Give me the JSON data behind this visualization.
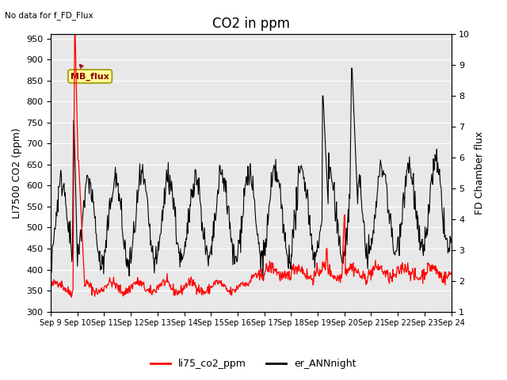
{
  "title": "CO2 in ppm",
  "ylabel_left": "LI7500 CO2 (ppm)",
  "ylabel_right": "FD Chamber flux",
  "top_left_text": "No data for f_FD_Flux",
  "annotation_text": "MB_flux",
  "ylim_left": [
    300,
    960
  ],
  "ylim_right": [
    1.0,
    10.0
  ],
  "yticks_left": [
    300,
    350,
    400,
    450,
    500,
    550,
    600,
    650,
    700,
    750,
    800,
    850,
    900,
    950
  ],
  "yticks_right": [
    1.0,
    2.0,
    3.0,
    4.0,
    5.0,
    6.0,
    7.0,
    8.0,
    9.0,
    10.0
  ],
  "xtick_labels": [
    "Sep 9",
    "Sep 10",
    "Sep 11",
    "Sep 12",
    "Sep 13",
    "Sep 14",
    "Sep 15",
    "Sep 16",
    "Sep 17",
    "Sep 18",
    "Sep 19",
    "Sep 20",
    "Sep 21",
    "Sep 22",
    "Sep 23",
    "Sep 24"
  ],
  "co2_color": "#ff0000",
  "ann_color": "#000000",
  "legend_entries": [
    "li75_co2_ppm",
    "er_ANNnight"
  ],
  "background_color": "#ffffff",
  "plot_bg_color": "#e8e8e8",
  "grid_color": "#ffffff",
  "annotation_box_color": "#ffff99",
  "annotation_box_edge": "#999900",
  "title_fontsize": 12,
  "axis_label_fontsize": 9,
  "tick_fontsize": 8
}
